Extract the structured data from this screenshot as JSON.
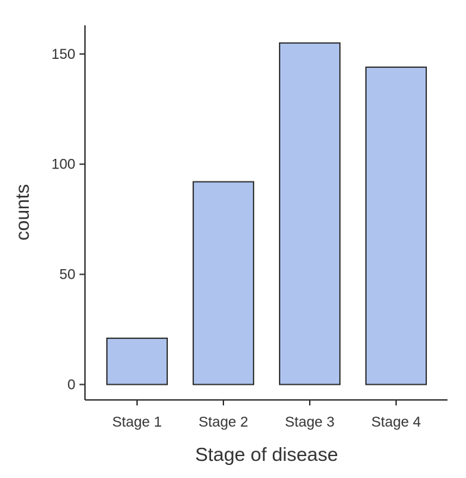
{
  "chart_data": {
    "type": "bar",
    "title": "",
    "xlabel": "Stage of disease",
    "ylabel": "counts",
    "categories": [
      "Stage 1",
      "Stage 2",
      "Stage 3",
      "Stage 4"
    ],
    "values": [
      21,
      92,
      155,
      144
    ],
    "ylim": [
      -7,
      163
    ],
    "yticks": [
      0,
      50,
      100,
      150
    ],
    "ytick_labels": [
      "0",
      "50",
      "100",
      "150"
    ],
    "grid": false,
    "legend": "none",
    "colors": {
      "bar_fill": "#aec4ee",
      "bar_stroke": "#2a2a2a",
      "axis": "#333333"
    }
  }
}
